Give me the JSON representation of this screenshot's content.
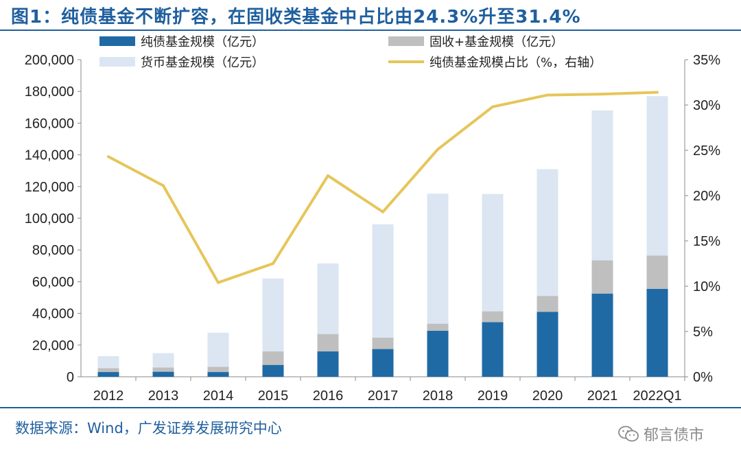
{
  "header": {
    "title": "图1：纯债基金不断扩容，在固收类基金中占比由24.3%升至31.4%"
  },
  "footer": {
    "source": "数据来源：Wind，广发证券发展研究中心",
    "watermark": "郁言债市"
  },
  "colors": {
    "pure_bond": "#1f6aa5",
    "fixed_income_plus": "#bfbfbf",
    "money_market": "#dce6f2",
    "share_line": "#e6c65a",
    "brand": "#1f5f9e"
  },
  "chart_data": {
    "type": "bar",
    "stacked": true,
    "categories": [
      "2012",
      "2013",
      "2014",
      "2015",
      "2016",
      "2017",
      "2018",
      "2019",
      "2020",
      "2021",
      "2022Q1"
    ],
    "series": [
      {
        "name": "纯债基金规模（亿元）",
        "axis": "left",
        "values": [
          3000,
          3200,
          3000,
          7500,
          16000,
          17500,
          29000,
          34500,
          41000,
          52500,
          55500
        ]
      },
      {
        "name": "固收+基金规模（亿元）",
        "axis": "left",
        "values": [
          2500,
          2700,
          3300,
          8500,
          11000,
          7200,
          4500,
          6800,
          10000,
          21000,
          21000
        ]
      },
      {
        "name": "货币基金规模（亿元）",
        "axis": "left",
        "values": [
          7500,
          9000,
          21500,
          46000,
          44500,
          71500,
          82000,
          74000,
          80000,
          94500,
          100500
        ]
      },
      {
        "name": "纯债基金规模占比（%，右轴）",
        "axis": "right",
        "type": "line",
        "values": [
          24.3,
          21.1,
          10.4,
          12.5,
          22.2,
          18.2,
          25.1,
          29.8,
          31.1,
          31.2,
          31.4
        ]
      }
    ],
    "left_axis": {
      "ylim": [
        0,
        200000
      ],
      "ticks": [
        "0",
        "20,000",
        "40,000",
        "60,000",
        "80,000",
        "100,000",
        "120,000",
        "140,000",
        "160,000",
        "180,000",
        "200,000"
      ]
    },
    "right_axis": {
      "ylim": [
        0,
        35
      ],
      "ticks": [
        "0%",
        "5%",
        "10%",
        "15%",
        "20%",
        "25%",
        "30%",
        "35%"
      ]
    },
    "legend_position": "top"
  }
}
